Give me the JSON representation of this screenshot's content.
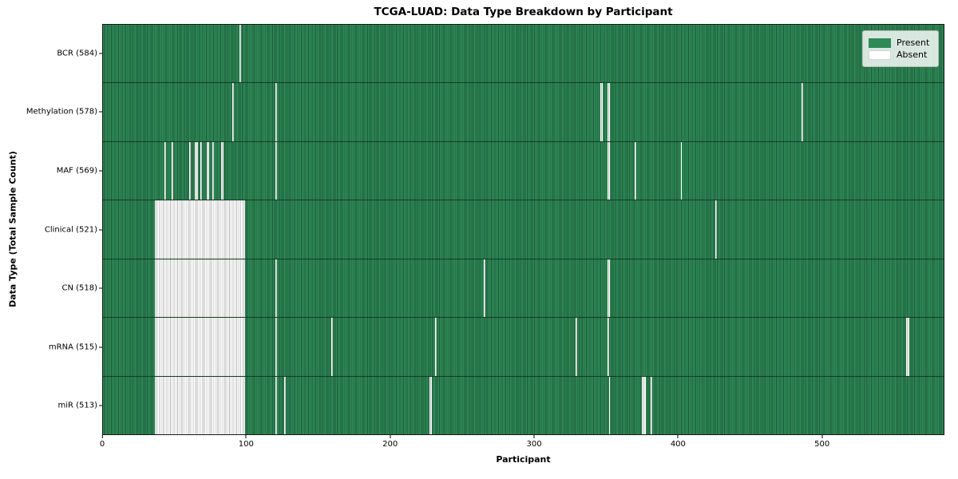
{
  "chart_data": {
    "type": "heatmap",
    "title": "TCGA-LUAD: Data Type Breakdown by Participant",
    "xlabel": "Participant",
    "ylabel": "Data Type (Total Sample Count)",
    "n_participants": 585,
    "x_range": [
      0,
      585
    ],
    "x_ticks": [
      0,
      100,
      200,
      300,
      400,
      500
    ],
    "grid": false,
    "legend_position": "upper right",
    "legend": [
      {
        "label": "Present",
        "color": "#2e8b57"
      },
      {
        "label": "Absent",
        "color": "#ffffff"
      }
    ],
    "colors": {
      "present": "#2e8b57",
      "present_edge": "#1d5a3a",
      "absent": "#ffffff",
      "absent_edge": "#b9b9b9",
      "row_divider": "#142a1b"
    },
    "rows": [
      {
        "label": "BCR (584)",
        "data_type": "BCR",
        "present_count": 584,
        "absent_runs": [
          [
            95,
            1
          ]
        ]
      },
      {
        "label": "Methylation (578)",
        "data_type": "Methylation",
        "present_count": 578,
        "absent_runs": [
          [
            90,
            1
          ],
          [
            120,
            1
          ],
          [
            346,
            2
          ],
          [
            351,
            2
          ],
          [
            486,
            1
          ]
        ]
      },
      {
        "label": "MAF (569)",
        "data_type": "MAF",
        "present_count": 569,
        "absent_runs": [
          [
            43,
            1
          ],
          [
            48,
            1
          ],
          [
            60,
            1
          ],
          [
            64,
            2
          ],
          [
            68,
            1
          ],
          [
            72,
            2
          ],
          [
            76,
            1
          ],
          [
            82,
            2
          ],
          [
            120,
            1
          ],
          [
            351,
            2
          ],
          [
            370,
            1
          ],
          [
            402,
            1
          ]
        ]
      },
      {
        "label": "Clinical (521)",
        "data_type": "Clinical",
        "present_count": 521,
        "absent_runs": [
          [
            36,
            63
          ],
          [
            426,
            1
          ]
        ]
      },
      {
        "label": "CN (518)",
        "data_type": "CN",
        "present_count": 518,
        "absent_runs": [
          [
            36,
            63
          ],
          [
            120,
            1
          ],
          [
            265,
            1
          ],
          [
            351,
            2
          ]
        ]
      },
      {
        "label": "mRNA (515)",
        "data_type": "mRNA",
        "present_count": 515,
        "absent_runs": [
          [
            36,
            63
          ],
          [
            120,
            1
          ],
          [
            159,
            1
          ],
          [
            231,
            1
          ],
          [
            329,
            1
          ],
          [
            351,
            1
          ],
          [
            559,
            2
          ]
        ]
      },
      {
        "label": "miR (513)",
        "data_type": "miR",
        "present_count": 513,
        "absent_runs": [
          [
            36,
            63
          ],
          [
            120,
            1
          ],
          [
            126,
            1
          ],
          [
            227,
            2
          ],
          [
            352,
            1
          ],
          [
            375,
            3
          ],
          [
            381,
            1
          ]
        ]
      }
    ]
  }
}
